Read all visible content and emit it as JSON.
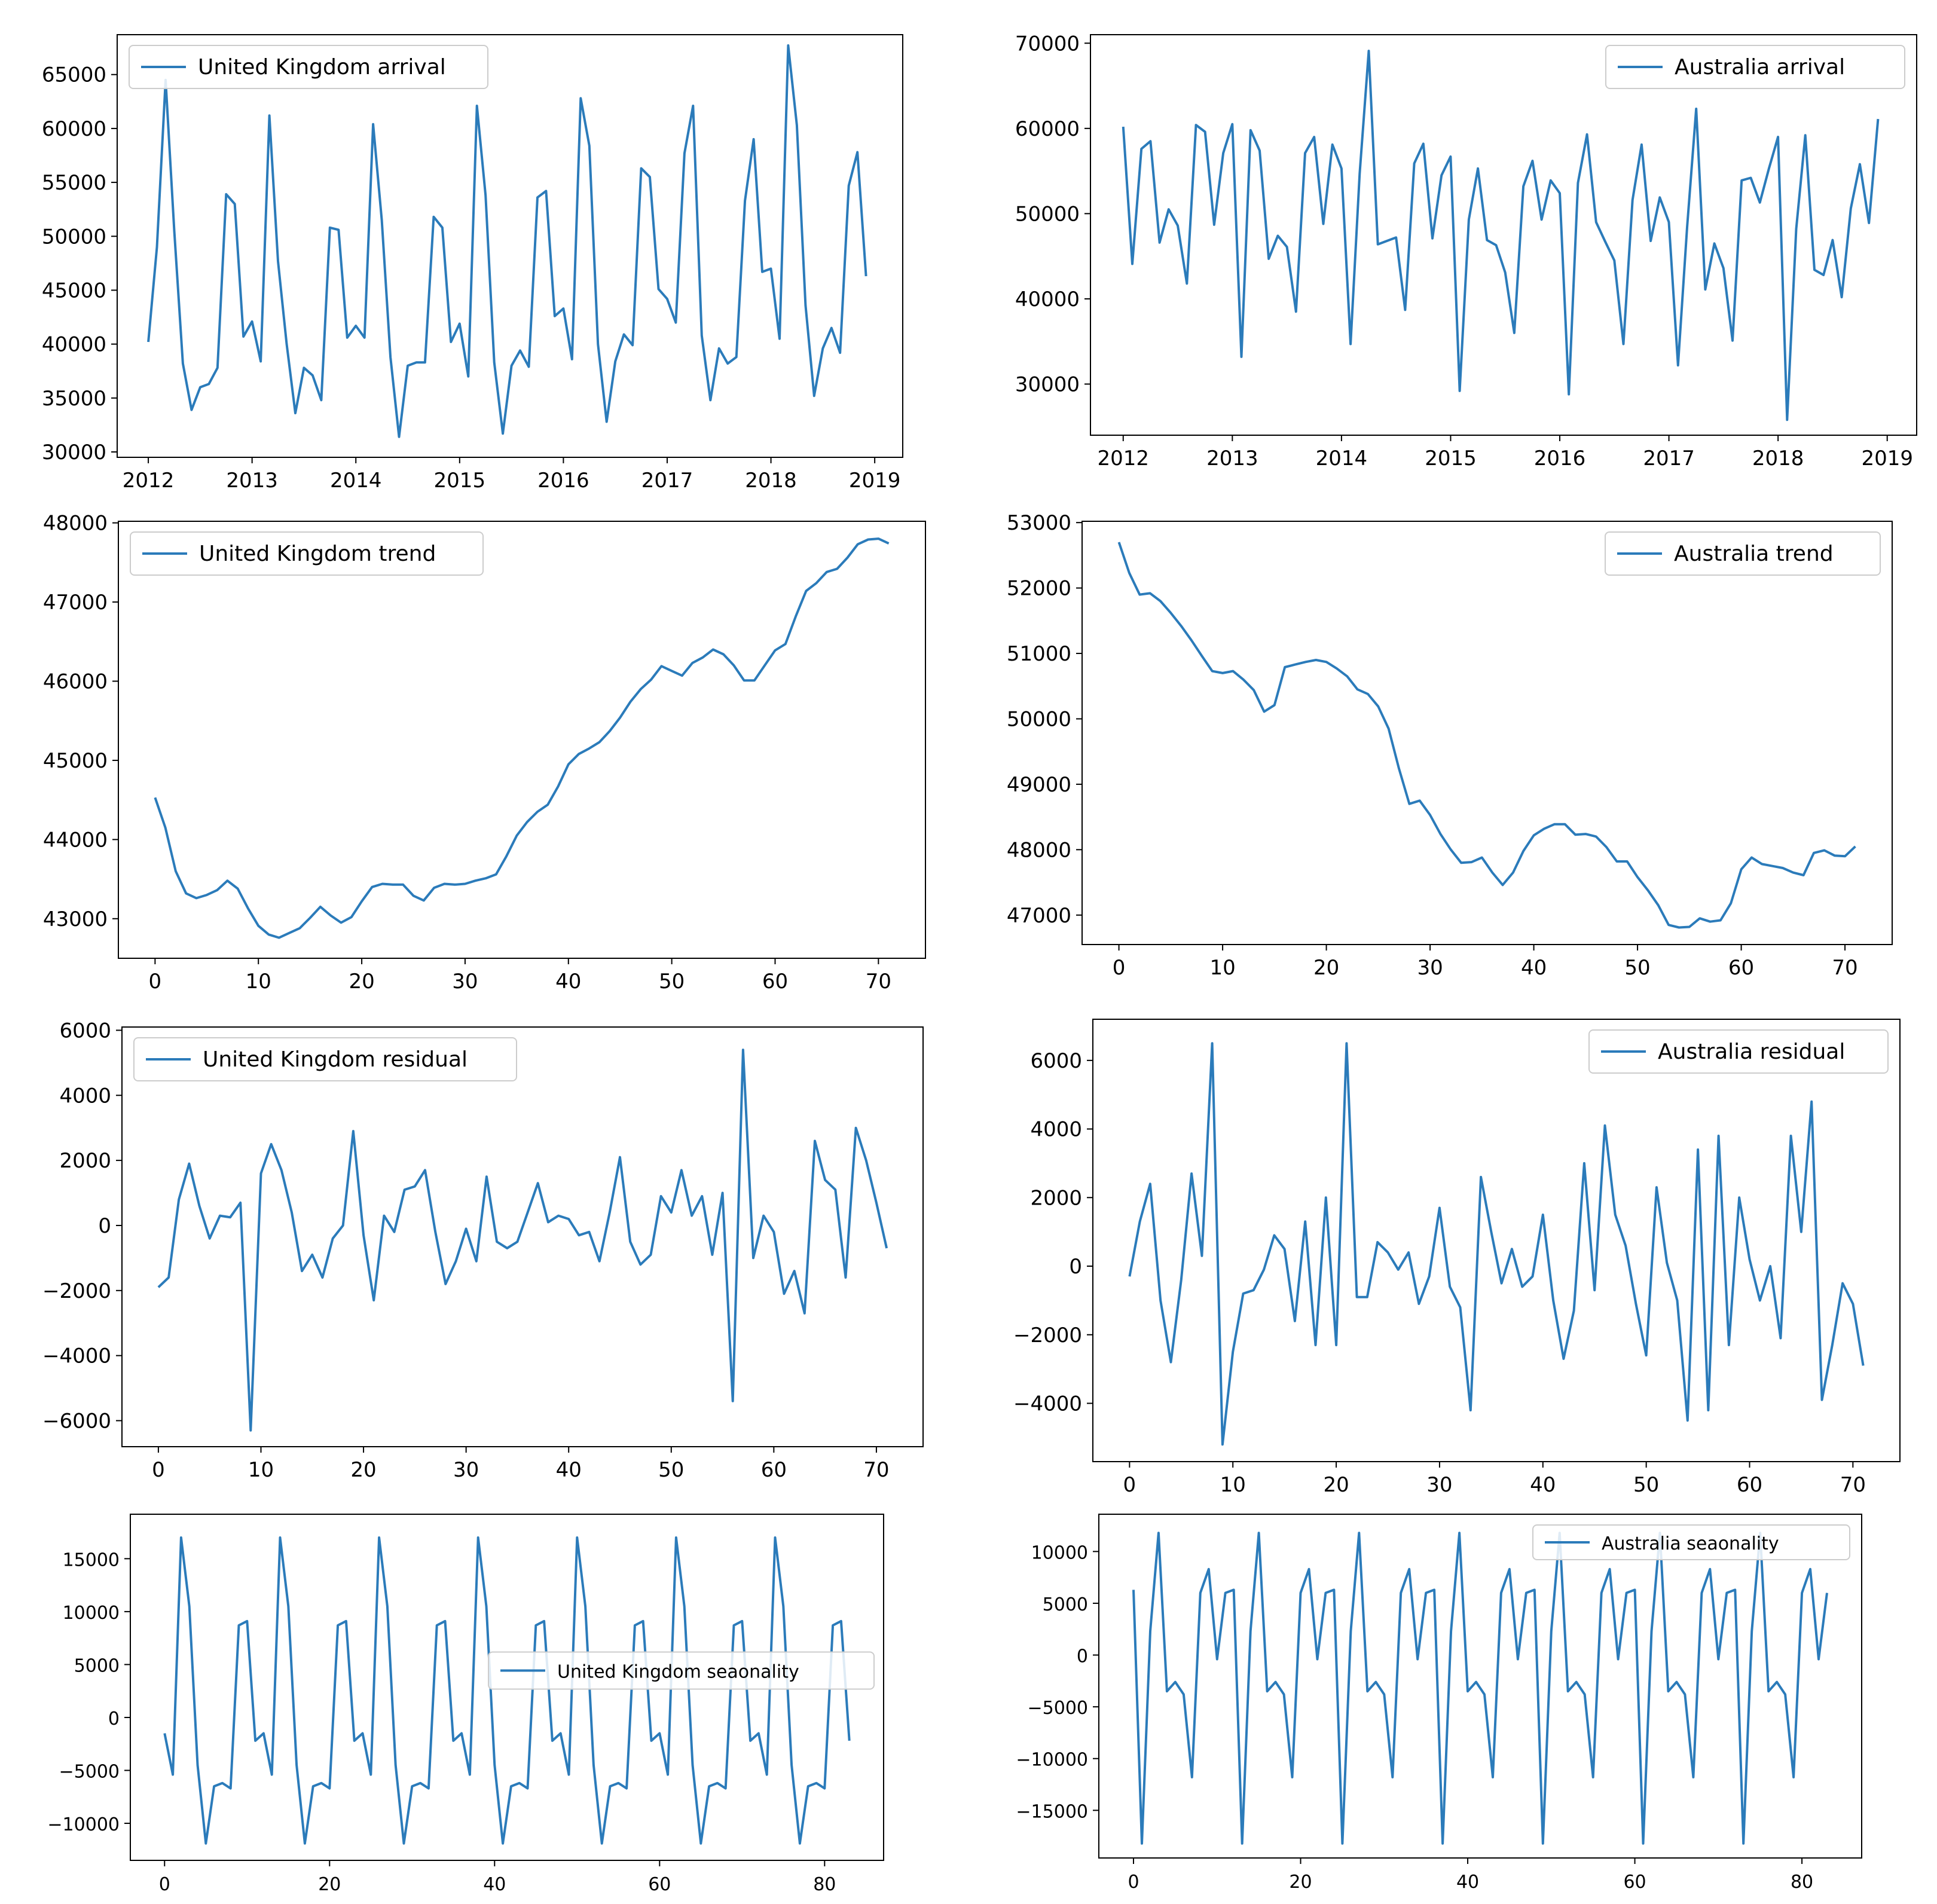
{
  "figure": {
    "line_color": "#2b7bba"
  },
  "chart_data": [
    {
      "id": "uk_arrival",
      "type": "line",
      "legend": "United Kingdom arrival",
      "legend_loc": "upper-left",
      "x_mode": "date",
      "x_start": 2012,
      "x_step": 0.08333,
      "xlim": [
        2011.7,
        2019.27
      ],
      "ylim": [
        29500,
        68700
      ],
      "xticks": [
        2012,
        2013,
        2014,
        2015,
        2016,
        2017,
        2018,
        2019
      ],
      "xtick_labels": [
        "2012",
        "2013",
        "2014",
        "2015",
        "2016",
        "2017",
        "2018",
        "2019"
      ],
      "yticks": [
        30000,
        35000,
        40000,
        45000,
        50000,
        55000,
        60000,
        65000
      ],
      "ytick_labels": [
        "30000",
        "35000",
        "40000",
        "45000",
        "50000",
        "55000",
        "60000",
        "65000"
      ],
      "values": [
        40200,
        49000,
        64500,
        50500,
        38200,
        33900,
        36000,
        36300,
        37800,
        53900,
        53000,
        40700,
        42100,
        38400,
        61200,
        47700,
        40000,
        33600,
        37800,
        37100,
        34800,
        50800,
        50600,
        40600,
        41700,
        40600,
        60400,
        51500,
        38800,
        31400,
        38000,
        38300,
        38300,
        51800,
        50800,
        40200,
        41900,
        37000,
        62100,
        53800,
        38300,
        31700,
        38000,
        39400,
        37900,
        53600,
        54200,
        42600,
        43300,
        38600,
        62800,
        58400,
        40000,
        32800,
        38400,
        40900,
        39900,
        56300,
        55500,
        45100,
        44200,
        42000,
        57700,
        62100,
        40800,
        34800,
        39600,
        38200,
        38800,
        53300,
        59000,
        46700,
        47000,
        40500,
        67700,
        60300,
        43600,
        35200,
        39600,
        41500,
        39200,
        54700,
        57800,
        46300
      ]
    },
    {
      "id": "au_arrival",
      "type": "line",
      "legend": "Australia arrival",
      "legend_loc": "upper-right",
      "x_mode": "date",
      "x_start": 2012,
      "x_step": 0.08333,
      "xlim": [
        2011.7,
        2019.27
      ],
      "ylim": [
        24000,
        71000
      ],
      "xticks": [
        2012,
        2013,
        2014,
        2015,
        2016,
        2017,
        2018,
        2019
      ],
      "xtick_labels": [
        "2012",
        "2013",
        "2014",
        "2015",
        "2016",
        "2017",
        "2018",
        "2019"
      ],
      "yticks": [
        30000,
        40000,
        50000,
        60000,
        70000
      ],
      "ytick_labels": [
        "30000",
        "40000",
        "50000",
        "60000",
        "70000"
      ],
      "values": [
        60200,
        44100,
        57600,
        58500,
        46600,
        50500,
        48600,
        41800,
        60400,
        59600,
        48700,
        57100,
        60500,
        33200,
        59800,
        57400,
        44700,
        47400,
        46100,
        38500,
        57100,
        59000,
        48800,
        58100,
        55300,
        34700,
        54700,
        69100,
        46400,
        46800,
        47200,
        38700,
        55900,
        58200,
        47100,
        54500,
        56700,
        29200,
        49300,
        55300,
        46900,
        46300,
        43100,
        36000,
        53200,
        56200,
        49300,
        53900,
        52400,
        28800,
        53600,
        59300,
        49000,
        46700,
        44500,
        34700,
        51600,
        58100,
        46800,
        51900,
        49000,
        32200,
        48400,
        62300,
        41100,
        46500,
        43600,
        35100,
        53900,
        54200,
        51300,
        55300,
        59000,
        25800,
        48200,
        59200,
        43400,
        42800,
        46900,
        40200,
        50600,
        55800,
        48900,
        61100
      ]
    },
    {
      "id": "uk_trend",
      "type": "line",
      "legend": "United Kingdom trend",
      "legend_loc": "upper-left",
      "x_mode": "index",
      "x_start": 0,
      "x_step": 1,
      "xlim": [
        -3.55,
        74.55
      ],
      "ylim": [
        42500,
        48020
      ],
      "xticks": [
        0,
        10,
        20,
        30,
        40,
        50,
        60,
        70
      ],
      "xtick_labels": [
        "0",
        "10",
        "20",
        "30",
        "40",
        "50",
        "60",
        "70"
      ],
      "yticks": [
        43000,
        44000,
        45000,
        46000,
        47000,
        48000
      ],
      "ytick_labels": [
        "43000",
        "44000",
        "45000",
        "46000",
        "47000",
        "48000"
      ],
      "values": [
        44530,
        44150,
        43600,
        43320,
        43260,
        43300,
        43360,
        43480,
        43380,
        43130,
        42910,
        42800,
        42760,
        42820,
        42880,
        43010,
        43150,
        43040,
        42950,
        43020,
        43220,
        43400,
        43440,
        43430,
        43430,
        43290,
        43230,
        43390,
        43440,
        43430,
        43440,
        43480,
        43510,
        43560,
        43790,
        44050,
        44220,
        44350,
        44440,
        44670,
        44950,
        45080,
        45150,
        45230,
        45370,
        45540,
        45740,
        45900,
        46020,
        46190,
        46130,
        46070,
        46230,
        46300,
        46400,
        46340,
        46200,
        46010,
        46010,
        46200,
        46390,
        46470,
        46820,
        47140,
        47240,
        47380,
        47420,
        47560,
        47730,
        47790,
        47800,
        47740
      ]
    },
    {
      "id": "au_trend",
      "type": "line",
      "legend": "Australia trend",
      "legend_loc": "upper-right",
      "x_mode": "index",
      "x_start": 0,
      "x_step": 1,
      "xlim": [
        -3.55,
        74.55
      ],
      "ylim": [
        46550,
        53020
      ],
      "xticks": [
        0,
        10,
        20,
        30,
        40,
        50,
        60,
        70
      ],
      "xtick_labels": [
        "0",
        "10",
        "20",
        "30",
        "40",
        "50",
        "60",
        "70"
      ],
      "yticks": [
        47000,
        48000,
        49000,
        50000,
        51000,
        52000,
        53000
      ],
      "ytick_labels": [
        "47000",
        "48000",
        "49000",
        "50000",
        "51000",
        "52000",
        "53000"
      ],
      "values": [
        52700,
        52230,
        51900,
        51920,
        51800,
        51620,
        51420,
        51200,
        50960,
        50730,
        50700,
        50730,
        50600,
        50440,
        50110,
        50210,
        50790,
        50830,
        50870,
        50900,
        50870,
        50770,
        50650,
        50450,
        50380,
        50190,
        49850,
        49240,
        48700,
        48750,
        48530,
        48240,
        48000,
        47800,
        47810,
        47880,
        47650,
        47460,
        47650,
        47980,
        48220,
        48320,
        48390,
        48390,
        48230,
        48240,
        48200,
        48040,
        47820,
        47820,
        47580,
        47380,
        47150,
        46850,
        46810,
        46820,
        46950,
        46900,
        46920,
        47180,
        47700,
        47880,
        47780,
        47750,
        47720,
        47650,
        47610,
        47950,
        47990,
        47910,
        47900,
        48050
      ]
    },
    {
      "id": "uk_residual",
      "type": "line",
      "legend": "United Kingdom residual",
      "legend_loc": "upper-left",
      "x_mode": "index",
      "x_start": 0,
      "x_step": 1,
      "xlim": [
        -3.55,
        74.55
      ],
      "ylim": [
        -6800,
        6100
      ],
      "xticks": [
        0,
        10,
        20,
        30,
        40,
        50,
        60,
        70
      ],
      "xtick_labels": [
        "0",
        "10",
        "20",
        "30",
        "40",
        "50",
        "60",
        "70"
      ],
      "yticks": [
        -6000,
        -4000,
        -2000,
        0,
        2000,
        4000,
        6000
      ],
      "ytick_labels": [
        "−6000",
        "−4000",
        "−2000",
        "0",
        "2000",
        "4000",
        "6000"
      ],
      "values": [
        -1900,
        -1600,
        800,
        1900,
        600,
        -400,
        300,
        250,
        700,
        -6300,
        1600,
        2500,
        1700,
        400,
        -1400,
        -900,
        -1600,
        -400,
        0,
        2900,
        -300,
        -2300,
        300,
        -200,
        1100,
        1200,
        1700,
        -200,
        -1800,
        -1100,
        -100,
        -1100,
        1500,
        -500,
        -700,
        -500,
        400,
        1300,
        100,
        300,
        200,
        -300,
        -200,
        -1100,
        400,
        2100,
        -500,
        -1200,
        -900,
        900,
        400,
        1700,
        300,
        900,
        -900,
        1000,
        -5400,
        5400,
        -1000,
        300,
        -200,
        -2100,
        -1400,
        -2700,
        2600,
        1400,
        1100,
        -1600,
        3000,
        2000,
        700,
        -700
      ]
    },
    {
      "id": "au_residual",
      "type": "line",
      "legend": "Australia residual",
      "legend_loc": "upper-right",
      "x_mode": "index",
      "x_start": 0,
      "x_step": 1,
      "xlim": [
        -3.55,
        74.55
      ],
      "ylim": [
        -5700,
        7200
      ],
      "xticks": [
        0,
        10,
        20,
        30,
        40,
        50,
        60,
        70
      ],
      "xtick_labels": [
        "0",
        "10",
        "20",
        "30",
        "40",
        "50",
        "60",
        "70"
      ],
      "yticks": [
        -4000,
        -2000,
        0,
        2000,
        4000,
        6000
      ],
      "ytick_labels": [
        "−4000",
        "−2000",
        "0",
        "2000",
        "4000",
        "6000"
      ],
      "values": [
        -300,
        1300,
        2400,
        -1000,
        -2800,
        -400,
        2700,
        300,
        6500,
        -5200,
        -2500,
        -800,
        -700,
        -100,
        900,
        500,
        -1600,
        1300,
        -2300,
        2000,
        -2300,
        6500,
        -900,
        -900,
        700,
        400,
        -100,
        400,
        -1100,
        -300,
        1700,
        -600,
        -1200,
        -4200,
        2600,
        1000,
        -500,
        500,
        -600,
        -300,
        1500,
        -1000,
        -2700,
        -1300,
        3000,
        -700,
        4100,
        1500,
        600,
        -1100,
        -2600,
        2300,
        100,
        -1000,
        -4500,
        3400,
        -4200,
        3800,
        -2300,
        2000,
        200,
        -1000,
        0,
        -2100,
        3800,
        1000,
        4800,
        -3900,
        -2300,
        -500,
        -1100,
        -2900
      ]
    },
    {
      "id": "uk_seasonality",
      "type": "line",
      "legend": "United Kingdom seaonality",
      "legend_loc": "center-right",
      "x_mode": "index",
      "x_start": 0,
      "x_step": 1,
      "xlim": [
        -4.15,
        87.15
      ],
      "ylim": [
        -13500,
        19200
      ],
      "xticks": [
        0,
        20,
        40,
        60,
        80
      ],
      "xtick_labels": [
        "0",
        "20",
        "40",
        "60",
        "80"
      ],
      "yticks": [
        -10000,
        -5000,
        0,
        5000,
        10000,
        15000
      ],
      "ytick_labels": [
        "−10000",
        "−5000",
        "0",
        "5000",
        "10000",
        "15000"
      ],
      "values": [
        -1500,
        -5400,
        17000,
        10500,
        -4500,
        -11900,
        -6500,
        -6200,
        -6700,
        8700,
        9100,
        -2200,
        -1500,
        -5400,
        17000,
        10500,
        -4500,
        -11900,
        -6500,
        -6200,
        -6700,
        8700,
        9100,
        -2200,
        -1500,
        -5400,
        17000,
        10500,
        -4500,
        -11900,
        -6500,
        -6200,
        -6700,
        8700,
        9100,
        -2200,
        -1500,
        -5400,
        17000,
        10500,
        -4500,
        -11900,
        -6500,
        -6200,
        -6700,
        8700,
        9100,
        -2200,
        -1500,
        -5400,
        17000,
        10500,
        -4500,
        -11900,
        -6500,
        -6200,
        -6700,
        8700,
        9100,
        -2200,
        -1500,
        -5400,
        17000,
        10500,
        -4500,
        -11900,
        -6500,
        -6200,
        -6700,
        8700,
        9100,
        -2200,
        -1500,
        -5400,
        17000,
        10500,
        -4500,
        -11900,
        -6500,
        -6200,
        -6700,
        8700,
        9100,
        -2200
      ]
    },
    {
      "id": "au_seasonality",
      "type": "line",
      "legend": "Australia seaonality",
      "legend_loc": "upper-right",
      "x_mode": "index",
      "x_start": 0,
      "x_step": 1,
      "xlim": [
        -4.15,
        87.15
      ],
      "ylim": [
        -19600,
        13600
      ],
      "xticks": [
        0,
        20,
        40,
        60,
        80
      ],
      "xtick_labels": [
        "0",
        "20",
        "40",
        "60",
        "80"
      ],
      "yticks": [
        -15000,
        -10000,
        -5000,
        0,
        5000,
        10000
      ],
      "ytick_labels": [
        "−15000",
        "−10000",
        "−5000",
        "0",
        "5000",
        "10000"
      ],
      "values": [
        6300,
        -18200,
        2300,
        11800,
        -3500,
        -2600,
        -3800,
        -11800,
        6000,
        8300,
        -400,
        6000,
        6300,
        -18200,
        2300,
        11800,
        -3500,
        -2600,
        -3800,
        -11800,
        6000,
        8300,
        -400,
        6000,
        6300,
        -18200,
        2300,
        11800,
        -3500,
        -2600,
        -3800,
        -11800,
        6000,
        8300,
        -400,
        6000,
        6300,
        -18200,
        2300,
        11800,
        -3500,
        -2600,
        -3800,
        -11800,
        6000,
        8300,
        -400,
        6000,
        6300,
        -18200,
        2300,
        11800,
        -3500,
        -2600,
        -3800,
        -11800,
        6000,
        8300,
        -400,
        6000,
        6300,
        -18200,
        2300,
        11800,
        -3500,
        -2600,
        -3800,
        -11800,
        6000,
        8300,
        -400,
        6000,
        6300,
        -18200,
        2300,
        11800,
        -3500,
        -2600,
        -3800,
        -11800,
        6000,
        8300,
        -400,
        6000
      ]
    }
  ]
}
